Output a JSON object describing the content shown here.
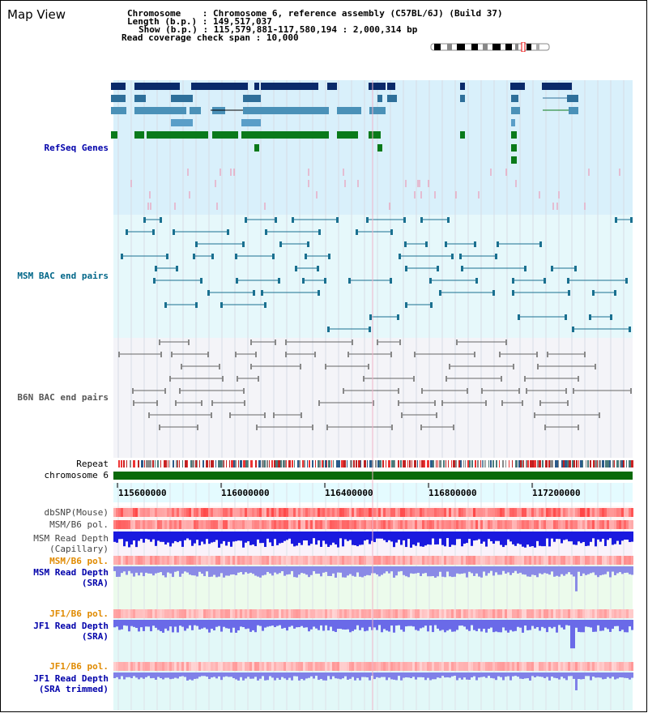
{
  "view_title": "Map View",
  "header": {
    "chromosome_label": "Chromosome",
    "chromosome_value": "Chromosome 6, reference assembly (C57BL/6J) (Build 37)",
    "length_label": "Length (b.p.)",
    "length_value": "149,517,037",
    "show_label": "Show (b.p.)",
    "show_value": "115,579,881-117,580,194 : 2,000,314 bp",
    "coverage_label": "Read coverage check span",
    "coverage_value": "10,000"
  },
  "tracks": {
    "refseq": {
      "label": "RefSeq Genes",
      "color": "#0000aa"
    },
    "msm_bac": {
      "label": "MSM BAC end pairs",
      "color": "#006688"
    },
    "b6n_bac": {
      "label": "B6N BAC end pairs",
      "color": "#555555"
    },
    "repeat": {
      "label": "Repeat"
    },
    "chromosome": {
      "label": "chromosome 6",
      "color": "#006400"
    },
    "dbsnp": {
      "label": "dbSNP(Mouse)"
    },
    "msm_b6_pol_1": {
      "label": "MSM/B6 pol."
    },
    "msm_depth_cap": {
      "label_1": "MSM Read Depth",
      "label_2": "(Capillary)"
    },
    "msm_b6_pol_2": {
      "label": "MSM/B6 pol.",
      "color": "#e08a00"
    },
    "msm_depth_sra": {
      "label_1": "MSM Read Depth",
      "label_2": "(SRA)",
      "color": "#0000aa"
    },
    "jf1_b6_pol_1": {
      "label": "JF1/B6 pol.",
      "color": "#e08a00"
    },
    "jf1_depth_sra": {
      "label_1": "JF1 Read Depth",
      "label_2": "(SRA)",
      "color": "#0000aa"
    },
    "jf1_b6_pol_2": {
      "label": "JF1/B6 pol.",
      "color": "#e08a00"
    },
    "jf1_depth_trim": {
      "label_1": "JF1 Read Depth",
      "label_2": "(SRA trimmed)",
      "color": "#0000aa"
    }
  },
  "ruler_ticks": [
    "115600000",
    "116000000",
    "116400000",
    "116800000",
    "117200000"
  ]
}
